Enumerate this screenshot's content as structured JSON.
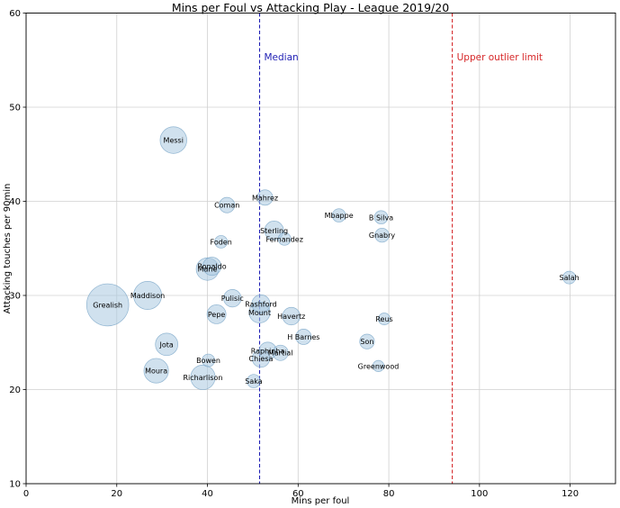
{
  "chart_data": {
    "type": "scatter",
    "title": "Mins per Foul vs Attacking Play - League 2019/20",
    "xlabel": "Mins per foul",
    "ylabel": "Attacking touches per 90min",
    "xlim": [
      0,
      130
    ],
    "ylim": [
      10,
      60
    ],
    "xticks": [
      "0",
      "20",
      "40",
      "60",
      "80",
      "100",
      "120"
    ],
    "yticks": [
      "10",
      "20",
      "30",
      "40",
      "50",
      "60"
    ],
    "grid": true,
    "bubble_color": "#a9c8e0",
    "bubble_alpha": 0.55,
    "bubble_edge_color": "#7aa6c8",
    "points": [
      {
        "label": "Grealish",
        "x": 18,
        "y": 29,
        "size": 3.0
      },
      {
        "label": "Maddison",
        "x": 26.8,
        "y": 30,
        "size": 2.0
      },
      {
        "label": "Messi",
        "x": 32.5,
        "y": 46.5,
        "size": 1.9
      },
      {
        "label": "Jota",
        "x": 31,
        "y": 24.8,
        "size": 1.6
      },
      {
        "label": "Moura",
        "x": 28.7,
        "y": 22,
        "size": 1.75
      },
      {
        "label": "Richarlison",
        "x": 39,
        "y": 21.3,
        "size": 1.75
      },
      {
        "label": "Bowen",
        "x": 40.2,
        "y": 23.1,
        "size": 0.9
      },
      {
        "label": "Pepe",
        "x": 42,
        "y": 28,
        "size": 1.35
      },
      {
        "label": "Pulisic",
        "x": 45.5,
        "y": 29.7,
        "size": 1.25
      },
      {
        "label": "Mane",
        "x": 40,
        "y": 32.8,
        "size": 1.6
      },
      {
        "label": "Ronaldo",
        "x": 41,
        "y": 33.1,
        "size": 1.3
      },
      {
        "label": "Foden",
        "x": 43,
        "y": 35.7,
        "size": 0.9
      },
      {
        "label": "Coman",
        "x": 44.3,
        "y": 39.6,
        "size": 1.1
      },
      {
        "label": "Mahrez",
        "x": 52.7,
        "y": 40.4,
        "size": 1.1
      },
      {
        "label": "Sterling",
        "x": 54.7,
        "y": 36.9,
        "size": 1.35
      },
      {
        "label": "Fernandez",
        "x": 57,
        "y": 36,
        "size": 0.9
      },
      {
        "label": "Rashford",
        "x": 51.8,
        "y": 29.1,
        "size": 1.3
      },
      {
        "label": "Mount",
        "x": 51.5,
        "y": 28.2,
        "size": 1.5
      },
      {
        "label": "Havertz",
        "x": 58.5,
        "y": 27.8,
        "size": 1.25
      },
      {
        "label": "H Barnes",
        "x": 61.2,
        "y": 25.6,
        "size": 1.1
      },
      {
        "label": "Raphinha",
        "x": 53.3,
        "y": 24.1,
        "size": 1.25
      },
      {
        "label": "Martial",
        "x": 56.1,
        "y": 23.9,
        "size": 1.1
      },
      {
        "label": "Chiesa",
        "x": 51.8,
        "y": 23.3,
        "size": 1.25
      },
      {
        "label": "Saka",
        "x": 50.2,
        "y": 20.9,
        "size": 0.95
      },
      {
        "label": "Mbappe",
        "x": 69,
        "y": 38.5,
        "size": 0.95
      },
      {
        "label": "B Silva",
        "x": 78.3,
        "y": 38.3,
        "size": 0.95
      },
      {
        "label": "Gnabry",
        "x": 78.5,
        "y": 36.4,
        "size": 1.0
      },
      {
        "label": "Reus",
        "x": 79,
        "y": 27.5,
        "size": 0.85
      },
      {
        "label": "Son",
        "x": 75.2,
        "y": 25.1,
        "size": 1.05
      },
      {
        "label": "Greenwood",
        "x": 77.7,
        "y": 22.5,
        "size": 0.8
      },
      {
        "label": "Salah",
        "x": 119.8,
        "y": 31.9,
        "size": 0.9
      }
    ],
    "reference_lines": [
      {
        "label": "Median",
        "x": 51.5,
        "color": "#1f1fb4"
      },
      {
        "label": "Upper outlier limit",
        "x": 94,
        "color": "#d62728"
      }
    ]
  }
}
